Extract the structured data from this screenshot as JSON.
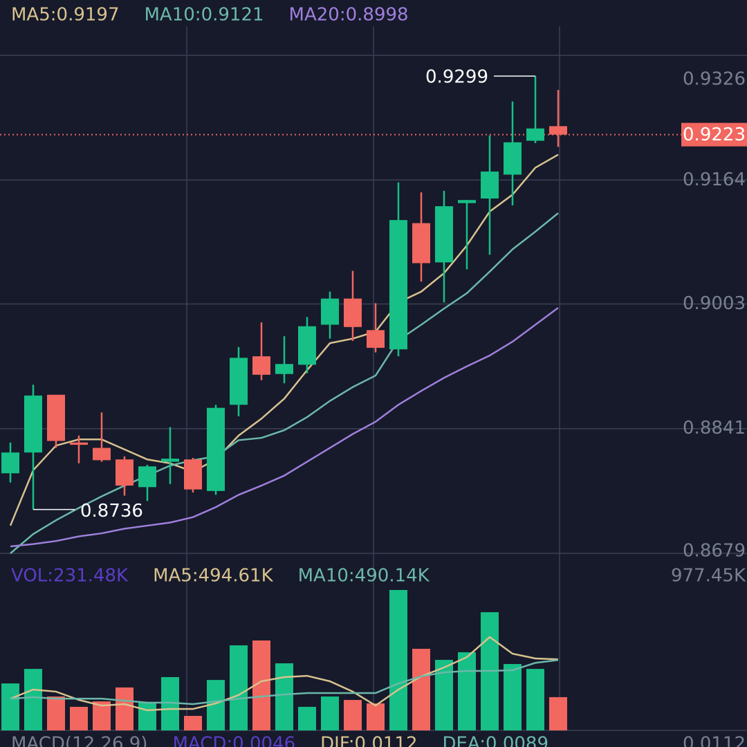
{
  "chart_data": [
    {
      "type": "candlestick",
      "open": [
        0.8783,
        0.881,
        0.8885,
        0.8823,
        0.8816,
        0.8801,
        0.8765,
        0.8798,
        0.8801,
        0.876,
        0.8872,
        0.8935,
        0.8912,
        0.8924,
        0.8976,
        0.901,
        0.8969,
        0.8944,
        0.9108,
        0.9057,
        0.9134,
        0.914,
        0.9171,
        0.9215,
        0.9234
      ],
      "high": [
        0.8823,
        0.8898,
        0.8885,
        0.8832,
        0.8862,
        0.8805,
        0.8794,
        0.8843,
        0.8803,
        0.8872,
        0.8947,
        0.8979,
        0.8961,
        0.8986,
        0.9019,
        0.9046,
        0.9004,
        0.9161,
        0.9148,
        0.915,
        0.9138,
        0.9222,
        0.9266,
        0.9299,
        0.9281
      ],
      "low": [
        0.8771,
        0.8736,
        0.8816,
        0.8796,
        0.8798,
        0.8754,
        0.8747,
        0.8769,
        0.8758,
        0.8755,
        0.8857,
        0.8904,
        0.89,
        0.8913,
        0.8958,
        0.8955,
        0.894,
        0.8935,
        0.9032,
        0.9005,
        0.9048,
        0.9067,
        0.9131,
        0.9212,
        0.9207
      ],
      "close": [
        0.881,
        0.8884,
        0.8825,
        0.882,
        0.88,
        0.8767,
        0.8792,
        0.8802,
        0.8762,
        0.8868,
        0.8933,
        0.8911,
        0.8925,
        0.8974,
        0.901,
        0.8973,
        0.8946,
        0.9112,
        0.9056,
        0.913,
        0.9138,
        0.9175,
        0.9213,
        0.9231,
        0.9223
      ],
      "up_color": "#17c086",
      "down_color": "#f2675f",
      "series": [
        {
          "name": "MA5:0.9197",
          "color": "#d9c28e",
          "values": [
            0.8715,
            0.8787,
            0.8819,
            0.8827,
            0.8827,
            0.8814,
            0.8801,
            0.8796,
            0.8785,
            0.8801,
            0.8832,
            0.8854,
            0.888,
            0.8917,
            0.8952,
            0.8958,
            0.8967,
            0.9005,
            0.9019,
            0.9043,
            0.9079,
            0.9123,
            0.9145,
            0.918,
            0.9197
          ]
        },
        {
          "name": "MA10:0.9121",
          "color": "#6cb8aa",
          "values": [
            0.8679,
            0.8704,
            0.8722,
            0.8738,
            0.8753,
            0.8767,
            0.878,
            0.8793,
            0.88,
            0.8805,
            0.8826,
            0.8829,
            0.8839,
            0.8856,
            0.8877,
            0.8895,
            0.891,
            0.8956,
            0.8976,
            0.8997,
            0.9017,
            0.9045,
            0.9074,
            0.9097,
            0.9121
          ]
        },
        {
          "name": "MA20:0.8998",
          "color": "#a07fdc",
          "values": [
            0.8688,
            0.8691,
            0.8695,
            0.8701,
            0.8705,
            0.8711,
            0.8715,
            0.8719,
            0.8726,
            0.8739,
            0.8755,
            0.8767,
            0.878,
            0.8798,
            0.8816,
            0.8834,
            0.885,
            0.8872,
            0.889,
            0.8907,
            0.8922,
            0.8936,
            0.8954,
            0.8976,
            0.8998
          ]
        }
      ],
      "ylim": [
        0.8679,
        0.9326
      ],
      "yticks": [
        0.9326,
        0.9164,
        0.9003,
        0.8841,
        0.8679
      ],
      "grid": true,
      "max_label": 0.9299,
      "min_label": 0.8736,
      "last_price": 0.9223,
      "last_price_color": "#f2675f"
    },
    {
      "type": "bar",
      "legend_title": "VOL:231.48K",
      "legend_title_color": "#5b3dc4",
      "values": [
        327,
        428,
        236,
        164,
        202,
        299,
        193,
        371,
        101,
        351,
        592,
        626,
        467,
        164,
        236,
        212,
        188,
        977.45,
        568,
        491,
        544,
        823,
        462,
        428,
        231.48
      ],
      "series": [
        {
          "name": "MA5:494.61K",
          "color": "#d9c28e",
          "values": [
            221,
            284,
            270,
            212,
            173,
            183,
            140,
            149,
            149,
            188,
            246,
            342,
            371,
            380,
            342,
            270,
            173,
            284,
            376,
            438,
            510,
            650,
            534,
            501,
            494.61
          ]
        },
        {
          "name": "MA10:490.14K",
          "color": "#6cb8aa",
          "values": [
            221,
            231,
            221,
            221,
            221,
            207,
            193,
            193,
            183,
            202,
            221,
            236,
            250,
            260,
            260,
            260,
            260,
            327,
            376,
            404,
            414,
            414,
            419,
            470,
            490.14
          ]
        }
      ],
      "ylim": [
        0,
        977.45
      ],
      "yticks": [
        {
          "value": 977.45,
          "label": "977.45K"
        }
      ]
    },
    {
      "type": "macd",
      "legend": [
        {
          "name": "MACD(12,26,9)",
          "color": "#7a8090"
        },
        {
          "name": "MACD:0.0046",
          "color": "#5b3dc4"
        },
        {
          "name": "DIF:0.0112",
          "color": "#d9c28e"
        },
        {
          "name": "DEA:0.0089",
          "color": "#6cb8aa"
        }
      ],
      "yticks": [
        {
          "value": 0.0112,
          "label": "0.0112"
        }
      ]
    }
  ]
}
